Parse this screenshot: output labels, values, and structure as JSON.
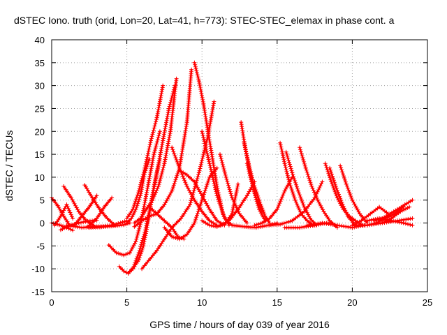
{
  "chart_data": {
    "type": "scatter",
    "title": "dSTEC Iono. truth (orid, Lon=20, Lat=41, h=773): STEC-STEC_elemax in phase cont. a",
    "xlabel": "GPS time / hours of day 039 of year 2016",
    "ylabel": "dSTEC  / TECUs",
    "xlim": [
      0,
      25
    ],
    "ylim": [
      -15,
      40
    ],
    "xticks": [
      0,
      5,
      10,
      15,
      20,
      25
    ],
    "yticks": [
      -15,
      -10,
      -5,
      0,
      5,
      10,
      15,
      20,
      25,
      30,
      35,
      40
    ],
    "grid": true,
    "marker": "+",
    "color": "#ff0000",
    "series": [
      {
        "x": [
          0.0,
          0.4,
          0.8,
          1.2
        ],
        "y": [
          5.5,
          3.8,
          1.5,
          -0.5
        ]
      },
      {
        "x": [
          0.0,
          0.5,
          1.0,
          1.4
        ],
        "y": [
          0.0,
          -0.4,
          -1.0,
          -1.6
        ]
      },
      {
        "x": [
          0.2,
          0.6,
          1.0,
          1.4
        ],
        "y": [
          -0.5,
          1.5,
          4.0,
          1.0
        ]
      },
      {
        "x": [
          0.8,
          1.3,
          1.8,
          2.3,
          2.8
        ],
        "y": [
          8.0,
          5.5,
          2.5,
          0.5,
          -0.5
        ]
      },
      {
        "x": [
          0.6,
          1.2,
          1.8,
          2.4,
          3.0
        ],
        "y": [
          -1.5,
          -0.5,
          0.0,
          0.4,
          0.6
        ]
      },
      {
        "x": [
          1.5,
          2.0,
          2.5,
          3.0
        ],
        "y": [
          -0.5,
          1.5,
          3.5,
          6.0
        ]
      },
      {
        "x": [
          2.2,
          2.7,
          3.2,
          3.7,
          4.2
        ],
        "y": [
          8.3,
          5.5,
          3.0,
          1.0,
          -0.5
        ]
      },
      {
        "x": [
          2.4,
          3.0,
          3.5,
          4.0
        ],
        "y": [
          -0.8,
          1.0,
          3.5,
          5.5
        ]
      },
      {
        "x": [
          2.5,
          3.2,
          4.0,
          4.8,
          5.2
        ],
        "y": [
          -1.0,
          -0.9,
          -0.7,
          -0.4,
          0.0
        ]
      },
      {
        "x": [
          1.0,
          2.0,
          3.0,
          4.0,
          5.0
        ],
        "y": [
          -0.5,
          -1.0,
          -0.8,
          -0.5,
          0.5
        ]
      },
      {
        "x": [
          3.8,
          4.3,
          4.8,
          5.2,
          5.6,
          6.0,
          6.4,
          6.8,
          7.2
        ],
        "y": [
          -4.8,
          -6.5,
          -7.0,
          -6.5,
          -4.0,
          1.0,
          8.0,
          15.0,
          20.0
        ]
      },
      {
        "x": [
          4.5,
          4.8,
          5.1,
          5.4,
          5.8,
          6.2,
          6.6,
          7.0,
          7.4,
          7.8,
          8.2
        ],
        "y": [
          -9.5,
          -10.5,
          -11.0,
          -10.0,
          -6.5,
          -2.0,
          4.0,
          11.0,
          18.0,
          25.0,
          30.0
        ]
      },
      {
        "x": [
          5.2,
          5.5,
          5.8,
          6.1,
          6.4,
          6.8,
          7.2
        ],
        "y": [
          -10.5,
          -9.5,
          -8.0,
          -5.0,
          0.0,
          8.0,
          14.0
        ]
      },
      {
        "x": [
          5.0,
          5.3,
          5.6,
          5.9,
          6.2,
          6.5
        ],
        "y": [
          0.0,
          1.0,
          3.0,
          6.0,
          11.0,
          14.0
        ]
      },
      {
        "x": [
          5.0,
          5.4,
          5.8,
          6.2,
          6.6,
          7.0,
          7.4
        ],
        "y": [
          1.0,
          3.0,
          7.0,
          12.0,
          18.0,
          23.0,
          30.0
        ]
      },
      {
        "x": [
          5.5,
          5.9,
          6.3,
          6.7,
          7.1,
          7.5,
          7.9,
          8.3
        ],
        "y": [
          0.0,
          1.0,
          3.0,
          5.0,
          8.0,
          13.0,
          20.0,
          31.5
        ]
      },
      {
        "x": [
          5.5,
          6.0,
          6.5,
          7.0,
          7.5,
          8.0,
          8.5,
          9.0,
          9.3
        ],
        "y": [
          -0.8,
          0.5,
          1.5,
          2.0,
          4.0,
          7.0,
          12.0,
          22.0,
          33.5
        ]
      },
      {
        "x": [
          6.5,
          7.0,
          7.5,
          8.0,
          8.4,
          8.8
        ],
        "y": [
          3.5,
          2.0,
          0.5,
          -1.0,
          -3.0,
          -3.5
        ]
      },
      {
        "x": [
          7.5,
          8.0,
          8.5,
          9.0,
          9.5,
          10.0,
          10.5,
          11.0
        ],
        "y": [
          -1.0,
          -3.0,
          -3.5,
          -2.5,
          0.0,
          5.0,
          10.0,
          12.0
        ]
      },
      {
        "x": [
          6.0,
          7.0,
          8.0,
          8.6,
          9.2,
          9.8,
          10.4,
          10.8
        ],
        "y": [
          -10.0,
          -6.0,
          -1.0,
          1.0,
          4.0,
          11.0,
          19.0,
          26.5
        ]
      },
      {
        "x": [
          8.0,
          8.5,
          9.0,
          9.5,
          10.0,
          10.5,
          11.0
        ],
        "y": [
          16.5,
          12.0,
          8.0,
          5.0,
          2.5,
          0.5,
          -0.5
        ]
      },
      {
        "x": [
          8.5,
          9.0,
          9.5,
          10.0,
          10.5,
          11.0,
          11.5
        ],
        "y": [
          11.5,
          10.5,
          9.0,
          6.0,
          3.0,
          0.5,
          -0.5
        ]
      },
      {
        "x": [
          9.5,
          9.8,
          10.1,
          10.4,
          10.7,
          11.0,
          11.4,
          11.8
        ],
        "y": [
          35.0,
          31.0,
          26.0,
          20.0,
          14.0,
          8.0,
          2.0,
          -0.5
        ]
      },
      {
        "x": [
          10.0,
          10.5,
          11.0,
          11.5,
          12.0
        ],
        "y": [
          20.0,
          13.0,
          6.0,
          1.0,
          -0.5
        ]
      },
      {
        "x": [
          10.0,
          10.5,
          11.0,
          11.5,
          12.0,
          12.4
        ],
        "y": [
          0.5,
          -0.5,
          -0.8,
          -0.3,
          2.0,
          8.5
        ]
      },
      {
        "x": [
          11.2,
          11.6,
          12.0,
          12.5,
          13.0
        ],
        "y": [
          15.0,
          10.0,
          5.5,
          2.0,
          0.0
        ]
      },
      {
        "x": [
          11.2,
          11.8,
          12.4,
          13.0,
          13.5
        ],
        "y": [
          -0.5,
          0.5,
          3.0,
          6.0,
          9.0
        ]
      },
      {
        "x": [
          12.6,
          12.9,
          13.2,
          13.5,
          13.8,
          14.2
        ],
        "y": [
          22.0,
          16.0,
          11.0,
          6.5,
          3.0,
          0.5
        ]
      },
      {
        "x": [
          12.8,
          13.1,
          13.4,
          13.8,
          14.2,
          14.5
        ],
        "y": [
          17.5,
          13.0,
          9.0,
          5.0,
          1.5,
          0.0
        ]
      },
      {
        "x": [
          13.0,
          13.3,
          13.6,
          14.0
        ],
        "y": [
          13.0,
          9.0,
          5.5,
          2.5
        ]
      },
      {
        "x": [
          12.0,
          12.8,
          13.6,
          14.4,
          15.0
        ],
        "y": [
          -0.5,
          -0.8,
          -1.0,
          -0.5,
          0.0
        ]
      },
      {
        "x": [
          13.5,
          14.0,
          14.5,
          15.0,
          15.5,
          16.0
        ],
        "y": [
          -0.5,
          0.0,
          1.0,
          3.0,
          7.0,
          10.0
        ]
      },
      {
        "x": [
          15.2,
          15.5,
          15.8,
          16.2,
          16.6,
          17.0,
          17.4
        ],
        "y": [
          17.5,
          13.0,
          9.0,
          5.0,
          2.0,
          0.5,
          -0.5
        ]
      },
      {
        "x": [
          15.6,
          16.0,
          16.4,
          16.8,
          17.2,
          17.6
        ],
        "y": [
          15.5,
          11.0,
          7.0,
          3.5,
          1.0,
          -0.5
        ]
      },
      {
        "x": [
          16.5,
          16.9,
          17.3,
          17.7,
          18.1,
          18.5,
          19.0
        ],
        "y": [
          16.5,
          12.0,
          8.0,
          5.0,
          2.5,
          0.5,
          -1.0
        ]
      },
      {
        "x": [
          14.5,
          15.2,
          16.0,
          16.8,
          17.5,
          18.0
        ],
        "y": [
          -0.5,
          -0.3,
          0.5,
          2.5,
          5.5,
          9.0
        ]
      },
      {
        "x": [
          15.5,
          16.5,
          17.5,
          18.3,
          19.0
        ],
        "y": [
          -1.0,
          -1.0,
          -0.5,
          0.0,
          -0.5
        ]
      },
      {
        "x": [
          18.2,
          18.6,
          19.0,
          19.4,
          19.8,
          20.2,
          20.7
        ],
        "y": [
          13.0,
          9.0,
          5.5,
          3.0,
          1.5,
          0.5,
          -0.5
        ]
      },
      {
        "x": [
          18.5,
          18.9,
          19.3,
          19.7,
          20.2
        ],
        "y": [
          12.0,
          8.0,
          4.5,
          1.5,
          -0.5
        ]
      },
      {
        "x": [
          19.2,
          19.6,
          20.0,
          20.5,
          21.0
        ],
        "y": [
          12.5,
          8.5,
          5.0,
          2.0,
          0.0
        ]
      },
      {
        "x": [
          17.0,
          18.0,
          19.0,
          20.0,
          20.8
        ],
        "y": [
          -0.5,
          0.0,
          -0.5,
          -1.0,
          -0.5
        ]
      },
      {
        "x": [
          20.0,
          20.6,
          21.2,
          21.8,
          22.4
        ],
        "y": [
          -0.5,
          0.5,
          2.0,
          3.5,
          2.0
        ]
      },
      {
        "x": [
          21.0,
          21.6,
          22.2,
          22.8,
          23.4
        ],
        "y": [
          -0.5,
          0.0,
          1.0,
          2.0,
          3.5
        ]
      },
      {
        "x": [
          21.5,
          22.0,
          22.5,
          23.0,
          23.5,
          24.0
        ],
        "y": [
          0.5,
          1.0,
          2.0,
          3.0,
          4.0,
          5.0
        ]
      },
      {
        "x": [
          20.0,
          21.0,
          22.0,
          23.0,
          24.0
        ],
        "y": [
          -0.5,
          -0.5,
          0.0,
          0.5,
          1.0
        ]
      },
      {
        "x": [
          22.0,
          22.6,
          23.2,
          23.8
        ],
        "y": [
          0.0,
          1.0,
          2.5,
          3.5
        ]
      },
      {
        "x": [
          21.0,
          21.8,
          22.6,
          23.4,
          24.0
        ],
        "y": [
          0.5,
          1.0,
          0.5,
          0.0,
          -0.5
        ]
      }
    ]
  }
}
